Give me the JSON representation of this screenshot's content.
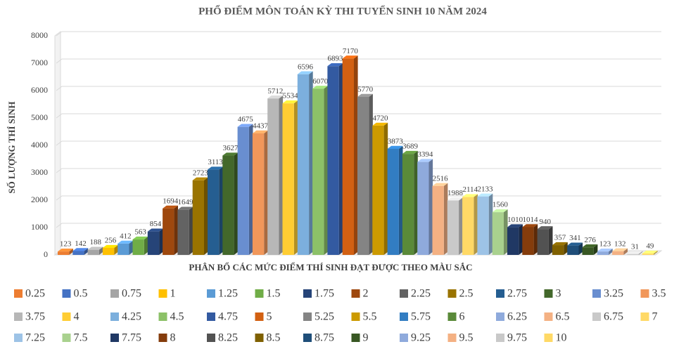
{
  "chart_data": {
    "type": "bar3d",
    "title": "PHỔ ĐIỂM MÔN TOÁN KỲ THI TUYỂN SINH 10 NĂM 2024",
    "x_label": "PHÂN BỔ CÁC MỨC ĐIỂM THÍ SINH ĐẠT ĐƯỢC THEO MÀU SẮC",
    "y_label": "SỐ LƯỢNG THÍ SINH",
    "categories": [
      "0.25",
      "0.5",
      "0.75",
      "1",
      "1.25",
      "1.5",
      "1.75",
      "2",
      "2.25",
      "2.5",
      "2.75",
      "3",
      "3.25",
      "3.5",
      "3.75",
      "4",
      "4.25",
      "4.5",
      "4.75",
      "5",
      "5.25",
      "5.5",
      "5.75",
      "6",
      "6.25",
      "6.5",
      "6.75",
      "7",
      "7.25",
      "7.5",
      "7.75",
      "8",
      "8.25",
      "8.5",
      "8.75",
      "9",
      "9.25",
      "9.5",
      "9.75",
      "10"
    ],
    "values": [
      123,
      142,
      188,
      256,
      412,
      563,
      854,
      1694,
      1649,
      2723,
      3113,
      3627,
      4675,
      4437,
      5712,
      5534,
      6596,
      6070,
      6893,
      7170,
      5770,
      4720,
      3873,
      3689,
      3394,
      2516,
      1988,
      2114,
      2133,
      1560,
      1010,
      1014,
      940,
      357,
      341,
      276,
      123,
      132,
      31,
      49
    ],
    "colors": [
      "#ed7d31",
      "#4472c4",
      "#a5a5a5",
      "#ffc000",
      "#5b9bd5",
      "#70ad47",
      "#264478",
      "#9e480e",
      "#636363",
      "#997300",
      "#255e91",
      "#43682b",
      "#698ed0",
      "#f1975a",
      "#b7b7b7",
      "#ffcd33",
      "#7cafdd",
      "#8cc168",
      "#335aa1",
      "#d26012",
      "#848484",
      "#cc9a00",
      "#327dc2",
      "#5a8a39",
      "#8faadc",
      "#f4b183",
      "#c9c9c9",
      "#ffd966",
      "#9dc3e6",
      "#a9d18e",
      "#203864",
      "#843c0c",
      "#525252",
      "#7f6000",
      "#1f4e79",
      "#385723",
      "#8faadc",
      "#f4b183",
      "#c9c9c9",
      "#ffd966"
    ],
    "ylim": [
      0,
      8000
    ],
    "yticks": [
      0,
      1000,
      2000,
      3000,
      4000,
      5000,
      6000,
      7000,
      8000
    ],
    "grid": true,
    "legend": "bottom"
  }
}
